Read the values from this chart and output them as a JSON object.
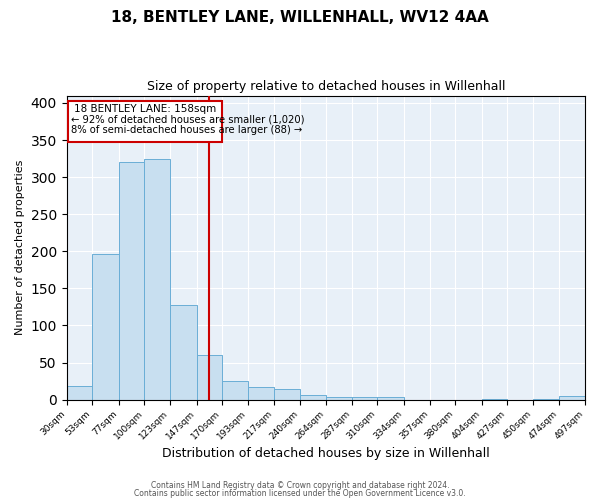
{
  "title": "18, BENTLEY LANE, WILLENHALL, WV12 4AA",
  "subtitle": "Size of property relative to detached houses in Willenhall",
  "xlabel": "Distribution of detached houses by size in Willenhall",
  "ylabel": "Number of detached properties",
  "bar_color": "#c8dff0",
  "bar_edge_color": "#6aaed6",
  "background_color": "#e8f0f8",
  "annotation_box_color": "#cc0000",
  "vline_color": "#cc0000",
  "bin_edges": [
    30,
    53,
    77,
    100,
    123,
    147,
    170,
    193,
    217,
    240,
    264,
    287,
    310,
    334,
    357,
    380,
    404,
    427,
    450,
    474,
    497
  ],
  "bar_heights": [
    18,
    197,
    320,
    325,
    128,
    60,
    25,
    17,
    15,
    6,
    4,
    4,
    4,
    0,
    0,
    0,
    1,
    0,
    1,
    5
  ],
  "property_size": 158,
  "annotation_line1": "18 BENTLEY LANE: 158sqm",
  "annotation_line2": "← 92% of detached houses are smaller (1,020)",
  "annotation_line3": "8% of semi-detached houses are larger (88) →",
  "ylim": [
    0,
    410
  ],
  "yticks": [
    0,
    50,
    100,
    150,
    200,
    250,
    300,
    350,
    400
  ],
  "footnote1": "Contains HM Land Registry data © Crown copyright and database right 2024.",
  "footnote2": "Contains public sector information licensed under the Open Government Licence v3.0."
}
